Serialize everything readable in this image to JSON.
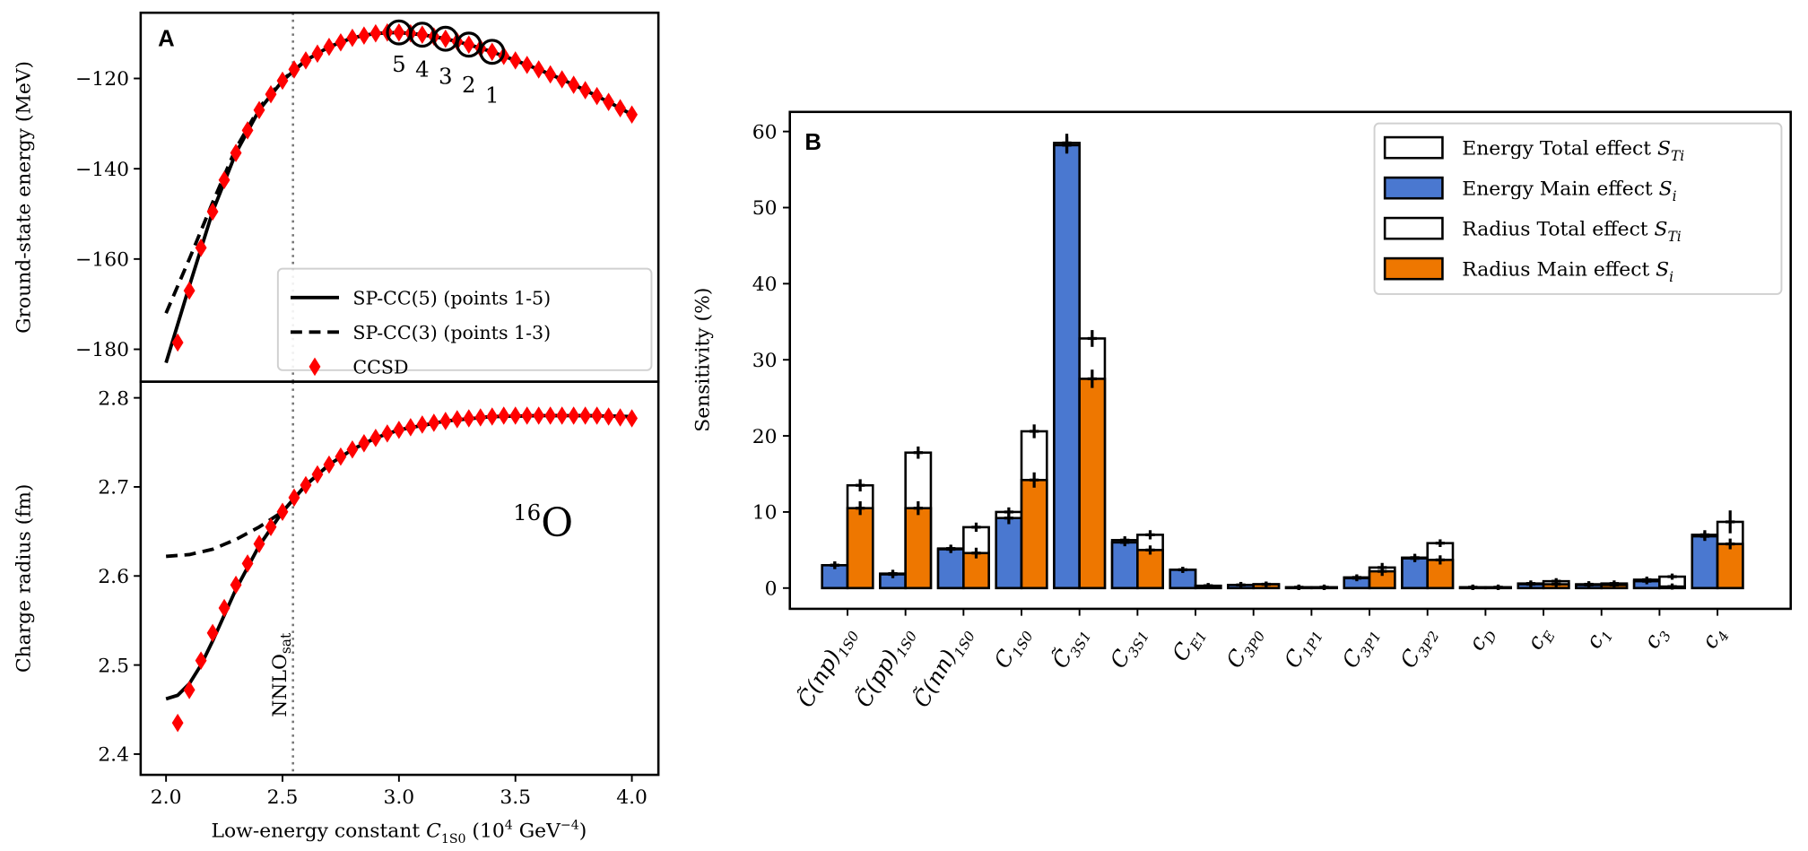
{
  "chart_data": [
    {
      "type": "line",
      "panel": "A",
      "subplot": "energy",
      "ylabel": "Ground-state energy (MeV)",
      "ylim": [
        -187,
        -106
      ],
      "yticks": [
        -120,
        -140,
        -160,
        -180
      ],
      "xlim": [
        1.89,
        4.11
      ],
      "reference_line": {
        "x": 2.545,
        "label": "NNLO",
        "label_sub": "sat"
      },
      "point_labels": [
        {
          "x": 3.0,
          "label": "5"
        },
        {
          "x": 3.1,
          "label": "4"
        },
        {
          "x": 3.2,
          "label": "3"
        },
        {
          "x": 3.3,
          "label": "2"
        },
        {
          "x": 3.4,
          "label": "1"
        }
      ],
      "series": [
        {
          "name": "SP-CC(5) (points 1-5)",
          "style": "solid",
          "x": [
            2.0,
            2.1,
            2.2,
            2.3,
            2.4,
            2.5,
            2.6,
            2.7,
            2.8,
            2.9,
            3.0,
            3.1,
            3.2,
            3.3,
            3.4,
            3.5,
            3.6,
            3.7,
            3.8,
            3.9,
            4.0
          ],
          "y": [
            -183,
            -166,
            -149.5,
            -136.5,
            -127,
            -120.5,
            -116,
            -113,
            -111,
            -110,
            -109.8,
            -110.3,
            -111.2,
            -112.5,
            -114.1,
            -116,
            -118,
            -120.2,
            -122.6,
            -125.2,
            -128
          ]
        },
        {
          "name": "SP-CC(3) (points 1-3)",
          "style": "dashed",
          "x": [
            2.0,
            2.1,
            2.2,
            2.3,
            2.4,
            2.5,
            2.6,
            2.7,
            2.8,
            2.9,
            3.0,
            3.1,
            3.2,
            3.3,
            3.4,
            3.5,
            3.6,
            3.7,
            3.8,
            3.9,
            4.0
          ],
          "y": [
            -172,
            -160,
            -147.5,
            -135.5,
            -126.5,
            -120.3,
            -116,
            -113,
            -111,
            -110,
            -109.8,
            -110.3,
            -111.2,
            -112.5,
            -114.1,
            -116,
            -118,
            -120.2,
            -122.6,
            -125.2,
            -128
          ]
        },
        {
          "name": "CCSD",
          "style": "diamond",
          "x": [
            2.05,
            2.1,
            2.15,
            2.2,
            2.25,
            2.3,
            2.35,
            2.4,
            2.45,
            2.5,
            2.55,
            2.6,
            2.65,
            2.7,
            2.75,
            2.8,
            2.85,
            2.9,
            2.95,
            3.0,
            3.05,
            3.1,
            3.15,
            3.2,
            3.25,
            3.3,
            3.35,
            3.4,
            3.45,
            3.5,
            3.55,
            3.6,
            3.65,
            3.7,
            3.75,
            3.8,
            3.85,
            3.9,
            3.95,
            4.0
          ],
          "y": [
            -178.5,
            -167,
            -157.5,
            -149.5,
            -142.5,
            -136.5,
            -131.5,
            -127,
            -123.5,
            -120.5,
            -118,
            -116,
            -114.5,
            -113,
            -112,
            -111,
            -110.5,
            -110,
            -109.8,
            -109.8,
            -110,
            -110.3,
            -110.7,
            -111.2,
            -111.8,
            -112.5,
            -113.3,
            -114.1,
            -115,
            -116,
            -117,
            -118,
            -119.1,
            -120.2,
            -121.4,
            -122.6,
            -123.9,
            -125.2,
            -126.6,
            -128
          ]
        }
      ],
      "legend": "lower-right"
    },
    {
      "type": "line",
      "panel": "A",
      "subplot": "radius",
      "ylabel": "Charge radius (fm)",
      "xlabel": {
        "text": "Low-energy constant ",
        "sym": "C",
        "sym_sub": "1S0",
        "unit_pre": "(10",
        "unit_sup": "4",
        "unit_mid": " GeV",
        "unit_sup2": "−4",
        "unit_post": ")"
      },
      "ylim": [
        2.377,
        2.82
      ],
      "yticks": [
        2.8,
        2.7,
        2.6,
        2.5,
        2.4
      ],
      "xticks": [
        2.0,
        2.5,
        3.0,
        3.5,
        4.0
      ],
      "xticklabels": [
        "2.0",
        "2.5",
        "3.0",
        "3.5",
        "4.0"
      ],
      "annotation": {
        "sup": "16",
        "text": "O"
      },
      "series": [
        {
          "name": "SP-CC(5) (points 1-5)",
          "style": "solid",
          "x": [
            2.0,
            2.05,
            2.1,
            2.15,
            2.2,
            2.3,
            2.4,
            2.5,
            2.6,
            2.7,
            2.8,
            2.9,
            3.0,
            3.2,
            3.4,
            3.6,
            3.8,
            4.0
          ],
          "y": [
            2.462,
            2.466,
            2.479,
            2.5,
            2.527,
            2.585,
            2.634,
            2.672,
            2.702,
            2.725,
            2.742,
            2.755,
            2.764,
            2.774,
            2.779,
            2.78,
            2.78,
            2.779
          ]
        },
        {
          "name": "SP-CC(3) (points 1-3)",
          "style": "dashed",
          "x": [
            2.0,
            2.1,
            2.2,
            2.3,
            2.4,
            2.5,
            2.6,
            2.7,
            2.8,
            2.9,
            3.0,
            3.2,
            3.4,
            3.6,
            3.8,
            4.0
          ],
          "y": [
            2.622,
            2.624,
            2.63,
            2.641,
            2.655,
            2.672,
            2.702,
            2.725,
            2.742,
            2.755,
            2.764,
            2.774,
            2.779,
            2.78,
            2.78,
            2.779
          ]
        },
        {
          "name": "CCSD",
          "style": "diamond",
          "x": [
            2.05,
            2.1,
            2.15,
            2.2,
            2.25,
            2.3,
            2.35,
            2.4,
            2.45,
            2.5,
            2.55,
            2.6,
            2.65,
            2.7,
            2.75,
            2.8,
            2.85,
            2.9,
            2.95,
            3.0,
            3.05,
            3.1,
            3.15,
            3.2,
            3.25,
            3.3,
            3.35,
            3.4,
            3.45,
            3.5,
            3.55,
            3.6,
            3.65,
            3.7,
            3.75,
            3.8,
            3.85,
            3.9,
            3.95,
            4.0
          ],
          "y": [
            2.435,
            2.472,
            2.505,
            2.536,
            2.564,
            2.59,
            2.614,
            2.636,
            2.655,
            2.672,
            2.688,
            2.702,
            2.714,
            2.725,
            2.734,
            2.742,
            2.749,
            2.755,
            2.76,
            2.764,
            2.767,
            2.77,
            2.772,
            2.774,
            2.776,
            2.777,
            2.778,
            2.779,
            2.78,
            2.78,
            2.78,
            2.78,
            2.78,
            2.78,
            2.78,
            2.78,
            2.78,
            2.779,
            2.778,
            2.777
          ]
        }
      ]
    },
    {
      "type": "bar",
      "panel": "B",
      "ylabel": "Sensitivity (%)",
      "ylim": [
        -2.8,
        62.8
      ],
      "yticks": [
        0,
        10,
        20,
        30,
        40,
        50,
        60
      ],
      "legend": "top-right",
      "categories": [
        {
          "main": "C̃(np)",
          "sub": "1S0"
        },
        {
          "main": "C̃(pp)",
          "sub": "1S0"
        },
        {
          "main": "C̃(nn)",
          "sub": "1S0"
        },
        {
          "main": "C",
          "sub": "1S0"
        },
        {
          "main": "C̃",
          "sub": "3S1"
        },
        {
          "main": "C",
          "sub": "3S1"
        },
        {
          "main": "C",
          "sub": "E1"
        },
        {
          "main": "C",
          "sub": "3P0"
        },
        {
          "main": "C",
          "sub": "1P1"
        },
        {
          "main": "C",
          "sub": "3P1"
        },
        {
          "main": "C",
          "sub": "3P2"
        },
        {
          "main": "c",
          "sub": "D"
        },
        {
          "main": "c",
          "sub": "E"
        },
        {
          "main": "c",
          "sub": "1"
        },
        {
          "main": "c",
          "sub": "3"
        },
        {
          "main": "c",
          "sub": "4"
        }
      ],
      "series": [
        {
          "name": "Energy Total effect",
          "sym": "S",
          "sym_sub": "Ti",
          "color": "#ffffff",
          "values": [
            3.0,
            1.9,
            5.2,
            10.0,
            58.5,
            6.3,
            2.4,
            0.4,
            0.1,
            1.4,
            4.0,
            0.1,
            0.6,
            0.5,
            1.1,
            7.0
          ],
          "errors": [
            0.2,
            0.2,
            0.2,
            0.3,
            0.9,
            0.2,
            0.1,
            0.1,
            0.05,
            0.1,
            0.2,
            0.05,
            0.1,
            0.1,
            0.1,
            0.3
          ]
        },
        {
          "name": "Energy Main effect",
          "sym": "S",
          "sym_sub": "i",
          "color": "#4a78d0",
          "values": [
            3.0,
            1.8,
            5.1,
            9.2,
            58.2,
            6.0,
            2.4,
            0.4,
            0.1,
            1.3,
            3.9,
            0.1,
            0.5,
            0.4,
            0.9,
            6.8
          ],
          "errors": [
            0.2,
            0.2,
            0.2,
            0.5,
            0.8,
            0.2,
            0.1,
            0.1,
            0.05,
            0.1,
            0.2,
            0.05,
            0.1,
            0.1,
            0.1,
            0.3
          ]
        },
        {
          "name": "Radius Total effect",
          "sym": "S",
          "sym_sub": "Ti",
          "color": "#ffffff",
          "values": [
            13.5,
            17.8,
            8.0,
            20.6,
            32.8,
            7.0,
            0.3,
            0.5,
            0.1,
            2.7,
            5.9,
            0.1,
            0.9,
            0.6,
            1.5,
            8.7
          ],
          "errors": [
            0.5,
            0.5,
            0.3,
            0.6,
            0.8,
            0.3,
            0.05,
            0.05,
            0.05,
            0.3,
            0.2,
            0.05,
            0.1,
            0.1,
            0.1,
            1.2
          ]
        },
        {
          "name": "Radius Main effect",
          "sym": "S",
          "sym_sub": "i",
          "color": "#ee7700",
          "values": [
            10.5,
            10.5,
            4.6,
            14.2,
            27.5,
            5.0,
            0.3,
            0.5,
            0.1,
            2.2,
            3.7,
            0.1,
            0.5,
            0.4,
            0.2,
            5.8
          ],
          "errors": [
            0.6,
            0.6,
            0.4,
            0.7,
            0.9,
            0.3,
            0.05,
            0.05,
            0.05,
            0.3,
            0.3,
            0.05,
            0.1,
            0.1,
            0.1,
            0.4
          ]
        }
      ]
    }
  ]
}
